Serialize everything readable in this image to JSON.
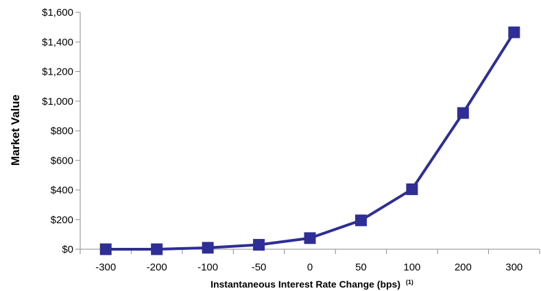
{
  "chart_data": {
    "type": "line",
    "title": "",
    "xlabel": "Instantaneous Interest Rate Change (bps)",
    "xlabel_superscript": "(1)",
    "ylabel": "Market Value",
    "categories": [
      "-300",
      "-200",
      "-100",
      "-50",
      "0",
      "50",
      "100",
      "200",
      "300"
    ],
    "series": [
      {
        "values": [
          0,
          0,
          10,
          30,
          75,
          195,
          405,
          920,
          1465
        ],
        "color": "#2E2E96",
        "marker": "square"
      }
    ],
    "ylim": [
      0,
      1600
    ],
    "yticks": [
      0,
      200,
      400,
      600,
      800,
      1000,
      1200,
      1400,
      1600
    ],
    "ytick_labels": [
      "$0",
      "$200",
      "$400",
      "$600",
      "$800",
      "$1,000",
      "$1,200",
      "$1,400",
      "$1,600"
    ],
    "grid": false,
    "legend": "none"
  }
}
